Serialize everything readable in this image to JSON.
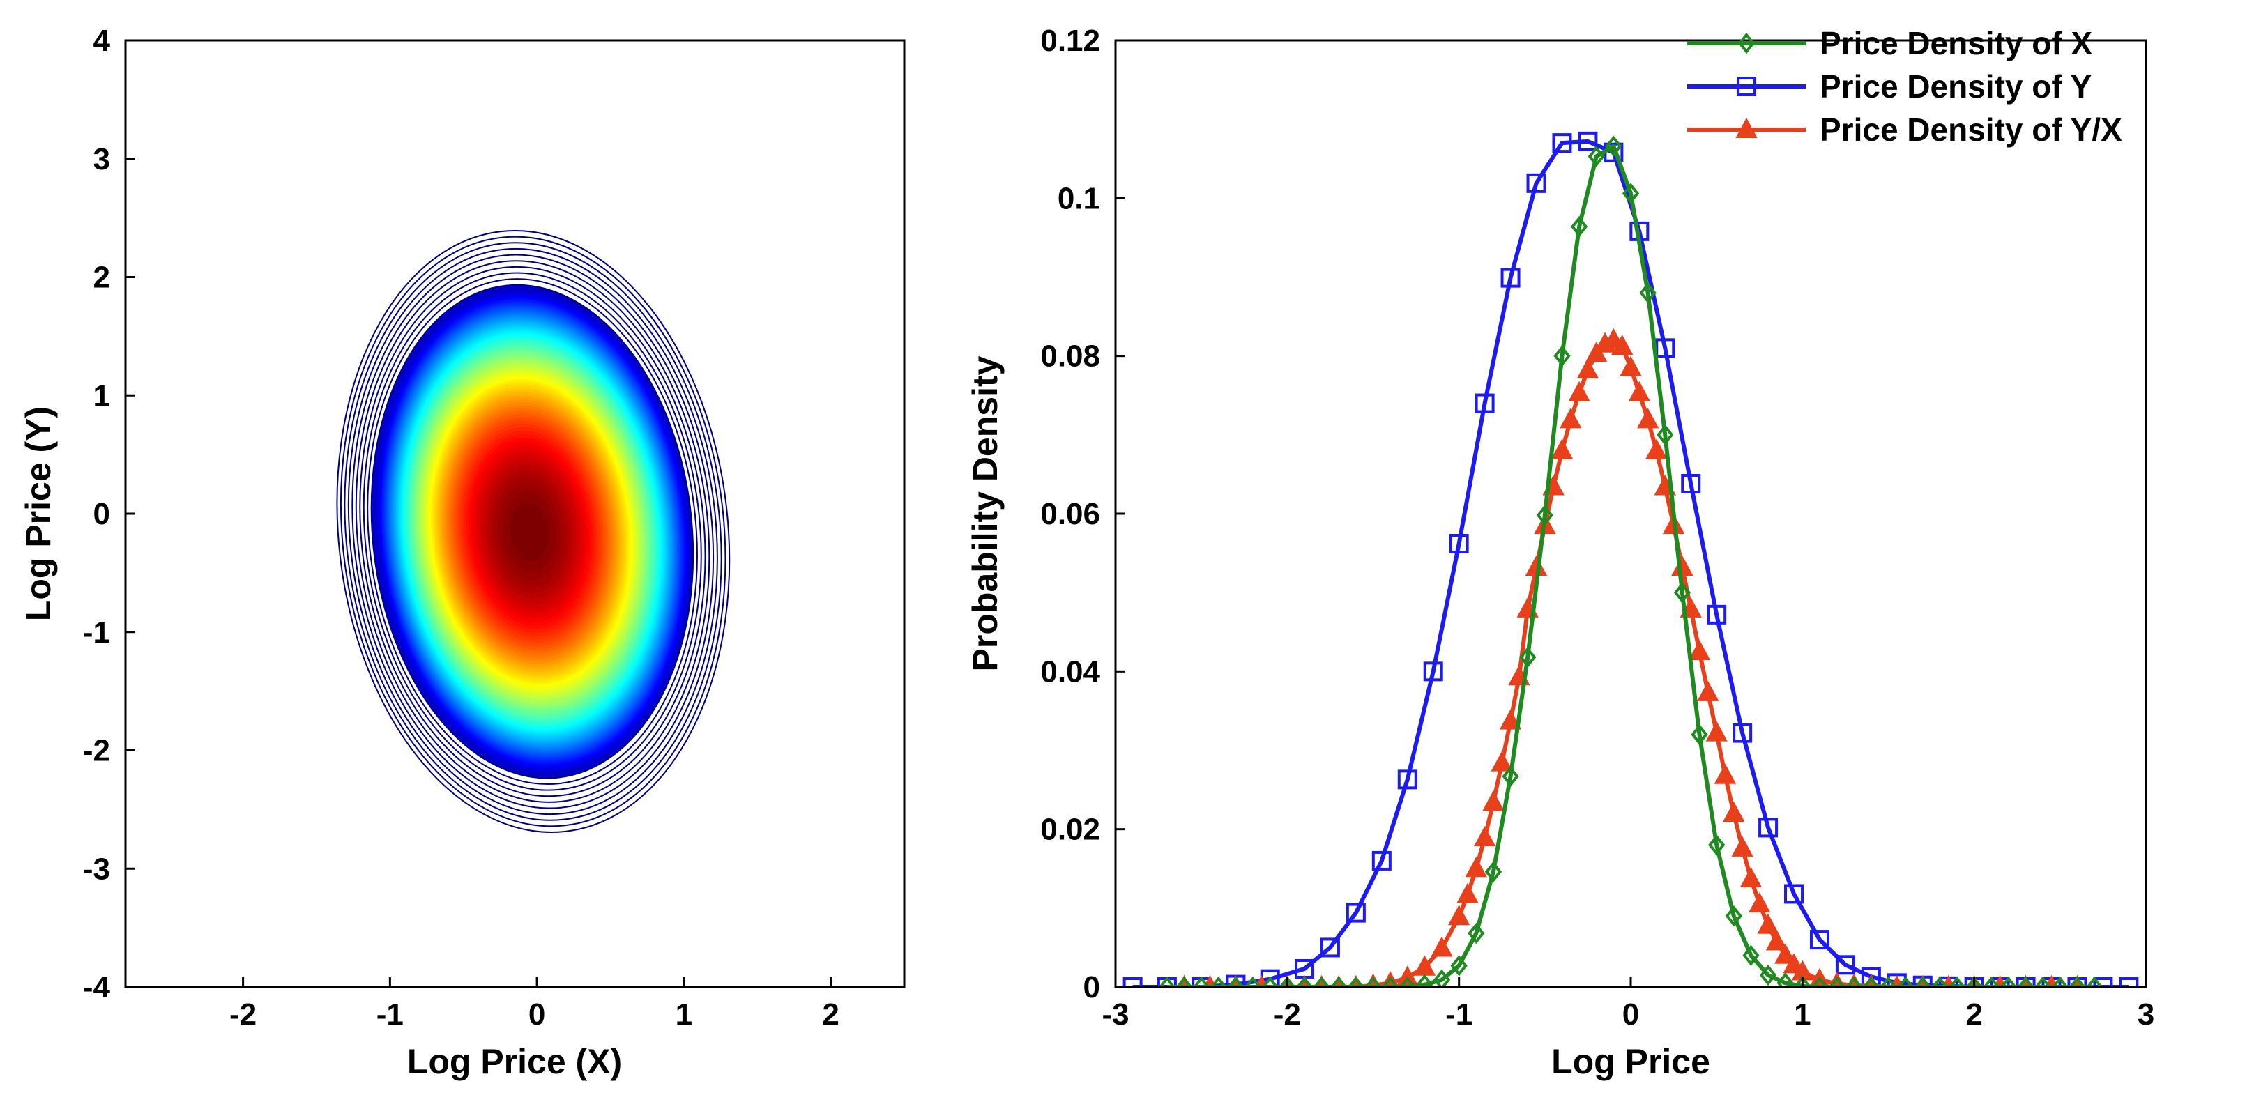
{
  "chart_data": [
    {
      "type": "contour",
      "title": "",
      "xlabel": "Log Price (X)",
      "ylabel": "Log Price (Y)",
      "xlim": [
        -2.8,
        2.5
      ],
      "ylim": [
        -4,
        4
      ],
      "xticks": [
        "-2",
        "-1",
        "0",
        "1",
        "2"
      ],
      "yticks": [
        "4",
        "3",
        "2",
        "1",
        "0",
        "-1",
        "-2",
        "-3",
        "-4"
      ],
      "center": [
        -0.05,
        -0.15
      ],
      "sigma_x": 0.42,
      "sigma_y": 0.8,
      "outer_extent_x": [
        -1.35,
        1.3
      ],
      "outer_extent_y": [
        -2.7,
        2.4
      ],
      "colormap": [
        "#00007f",
        "#0000ff",
        "#0080ff",
        "#00ffff",
        "#80ff80",
        "#ffff00",
        "#ff8000",
        "#ff0000",
        "#7f0000"
      ]
    },
    {
      "type": "line",
      "title": "",
      "xlabel": "Log Price",
      "ylabel": "Probability Density",
      "xlim": [
        -3,
        3
      ],
      "ylim": [
        0,
        0.12
      ],
      "xticks": [
        "-3",
        "-2",
        "-1",
        "0",
        "1",
        "2",
        "3"
      ],
      "yticks": [
        "0.12",
        "0.1",
        "0.08",
        "0.06",
        "0.04",
        "0.02",
        "0"
      ],
      "legend_position": "top-right",
      "series": [
        {
          "name": "Price Density of X",
          "color": "#1f8a1f",
          "marker": "diamond",
          "x": [
            -2.7,
            -2.6,
            -2.5,
            -2.4,
            -2.3,
            -2.2,
            -2.1,
            -2.0,
            -1.9,
            -1.8,
            -1.7,
            -1.6,
            -1.5,
            -1.4,
            -1.3,
            -1.2,
            -1.1,
            -1.0,
            -0.9,
            -0.8,
            -0.7,
            -0.6,
            -0.5,
            -0.4,
            -0.3,
            -0.2,
            -0.1,
            0.0,
            0.1,
            0.2,
            0.3,
            0.4,
            0.5,
            0.6,
            0.7,
            0.8,
            0.9,
            1.0,
            1.1,
            1.2,
            1.3,
            1.4,
            1.5,
            1.6,
            1.7,
            1.8,
            1.9,
            2.0,
            2.1,
            2.2,
            2.3,
            2.4,
            2.5,
            2.6,
            2.7
          ],
          "values": [
            0,
            0,
            0,
            0,
            0,
            0,
            0,
            0,
            0,
            0,
            0,
            0,
            0,
            0,
            0,
            0.0003,
            0.0009,
            0.0027,
            0.0068,
            0.0146,
            0.0267,
            0.0418,
            0.0598,
            0.08,
            0.0964,
            0.1053,
            0.1066,
            0.1006,
            0.088,
            0.07,
            0.05,
            0.032,
            0.018,
            0.009,
            0.004,
            0.0015,
            0.0005,
            0.0001,
            0,
            0,
            0,
            0,
            0,
            0,
            0,
            0,
            0,
            0,
            0,
            0,
            0,
            0,
            0,
            0,
            0
          ]
        },
        {
          "name": "Price Density of Y",
          "color": "#1c1cf0",
          "marker": "square",
          "x": [
            -2.9,
            -2.7,
            -2.5,
            -2.3,
            -2.1,
            -1.9,
            -1.75,
            -1.6,
            -1.45,
            -1.3,
            -1.15,
            -1.0,
            -0.85,
            -0.7,
            -0.55,
            -0.4,
            -0.25,
            -0.1,
            0.05,
            0.2,
            0.35,
            0.5,
            0.65,
            0.8,
            0.95,
            1.1,
            1.25,
            1.4,
            1.55,
            1.7,
            1.85,
            2.0,
            2.15,
            2.3,
            2.45,
            2.6,
            2.75,
            2.9
          ],
          "values": [
            0,
            0,
            0,
            0.0003,
            0.001,
            0.0023,
            0.005,
            0.0094,
            0.016,
            0.0263,
            0.04,
            0.0562,
            0.074,
            0.0899,
            0.1019,
            0.107,
            0.1072,
            0.1058,
            0.0958,
            0.081,
            0.0638,
            0.0472,
            0.0322,
            0.0202,
            0.0118,
            0.006,
            0.0028,
            0.0013,
            0.0005,
            0.0002,
            0.0001,
            0,
            0,
            0,
            0,
            0,
            0,
            0
          ]
        },
        {
          "name": "Price Density of Y/X",
          "color": "#e8401a",
          "marker": "triangle",
          "x": [
            -2.6,
            -2.45,
            -2.3,
            -2.15,
            -2.0,
            -1.9,
            -1.8,
            -1.7,
            -1.6,
            -1.5,
            -1.4,
            -1.3,
            -1.2,
            -1.1,
            -1.0,
            -0.95,
            -0.9,
            -0.85,
            -0.8,
            -0.75,
            -0.7,
            -0.65,
            -0.6,
            -0.55,
            -0.5,
            -0.45,
            -0.4,
            -0.35,
            -0.3,
            -0.25,
            -0.2,
            -0.15,
            -0.1,
            -0.05,
            0.0,
            0.05,
            0.1,
            0.15,
            0.2,
            0.25,
            0.3,
            0.35,
            0.4,
            0.45,
            0.5,
            0.55,
            0.6,
            0.65,
            0.7,
            0.75,
            0.8,
            0.85,
            0.9,
            0.95,
            1.0,
            1.1,
            1.2,
            1.3,
            1.4,
            1.55,
            1.7,
            1.85,
            2.0,
            2.15,
            2.3,
            2.45,
            2.6
          ],
          "values": [
            0,
            0,
            0,
            0,
            0,
            0,
            0,
            0,
            0,
            0.0002,
            0.0005,
            0.0012,
            0.0025,
            0.0049,
            0.0089,
            0.0117,
            0.015,
            0.0189,
            0.0234,
            0.0284,
            0.0337,
            0.0393,
            0.0479,
            0.0532,
            0.0585,
            0.0634,
            0.068,
            0.0719,
            0.0753,
            0.0782,
            0.0803,
            0.0815,
            0.082,
            0.0812,
            0.0785,
            0.0753,
            0.0719,
            0.068,
            0.0634,
            0.0585,
            0.0532,
            0.0479,
            0.0425,
            0.0373,
            0.0322,
            0.0268,
            0.022,
            0.0176,
            0.0137,
            0.0105,
            0.0078,
            0.0057,
            0.004,
            0.0028,
            0.0019,
            0.0009,
            0.0004,
            0.0002,
            0.0001,
            0,
            0,
            0,
            0,
            0,
            0,
            0,
            0
          ]
        }
      ]
    }
  ]
}
